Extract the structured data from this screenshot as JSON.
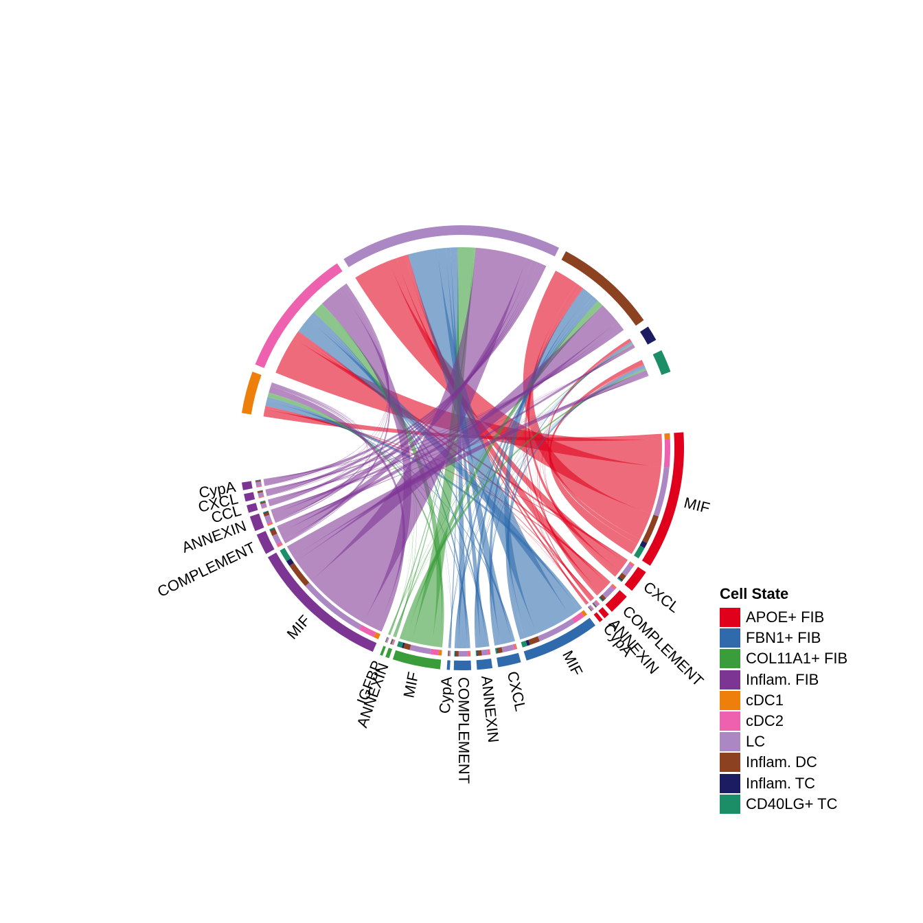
{
  "legend": {
    "title": "Cell State",
    "items": [
      {
        "label": "APOE+ FIB",
        "color": "#E0001B"
      },
      {
        "label": "FBN1+ FIB",
        "color": "#2F6AAD"
      },
      {
        "label": "COL11A1+ FIB",
        "color": "#3A9C3A"
      },
      {
        "label": "Inflam. FIB",
        "color": "#7D3594"
      },
      {
        "label": "cDC1",
        "color": "#EF7F0B"
      },
      {
        "label": "cDC2",
        "color": "#EE61AE"
      },
      {
        "label": "LC",
        "color": "#AB88C3"
      },
      {
        "label": "Inflam. DC",
        "color": "#8C4120"
      },
      {
        "label": "Inflam. TC",
        "color": "#1B1C61"
      },
      {
        "label": "CD40LG+ TC",
        "color": "#1C8E67"
      }
    ]
  },
  "diagram": {
    "type": "chord",
    "sender_segments": [
      {
        "label": "MIF",
        "cell_state": "APOE+ FIB"
      },
      {
        "label": "CXCL",
        "cell_state": "APOE+ FIB"
      },
      {
        "label": "COMPLEMENT",
        "cell_state": "APOE+ FIB"
      },
      {
        "label": "ANNEXIN",
        "cell_state": "APOE+ FIB"
      },
      {
        "label": "CypA",
        "cell_state": "APOE+ FIB"
      },
      {
        "label": "MIF",
        "cell_state": "FBN1+ FIB"
      },
      {
        "label": "CXCL",
        "cell_state": "FBN1+ FIB"
      },
      {
        "label": "ANNEXIN",
        "cell_state": "FBN1+ FIB"
      },
      {
        "label": "COMPLEMENT",
        "cell_state": "FBN1+ FIB"
      },
      {
        "label": "CypA",
        "cell_state": "FBN1+ FIB"
      },
      {
        "label": "MIF",
        "cell_state": "COL11A1+ FIB"
      },
      {
        "label": "ANNEXIN",
        "cell_state": "COL11A1+ FIB"
      },
      {
        "label": "IGFBP",
        "cell_state": "COL11A1+ FIB"
      },
      {
        "label": "MIF",
        "cell_state": "Inflam. FIB"
      },
      {
        "label": "COMPLEMENT",
        "cell_state": "Inflam. FIB"
      },
      {
        "label": "ANNEXIN",
        "cell_state": "Inflam. FIB"
      },
      {
        "label": "CCL",
        "cell_state": "Inflam. FIB"
      },
      {
        "label": "CXCL",
        "cell_state": "Inflam. FIB"
      },
      {
        "label": "CypA",
        "cell_state": "Inflam. FIB"
      }
    ],
    "receiver_segments": [
      {
        "cell_state": "cDC1"
      },
      {
        "cell_state": "cDC2"
      },
      {
        "cell_state": "LC"
      },
      {
        "cell_state": "Inflam. DC"
      },
      {
        "cell_state": "Inflam. TC"
      },
      {
        "cell_state": "CD40LG+ TC"
      }
    ]
  }
}
